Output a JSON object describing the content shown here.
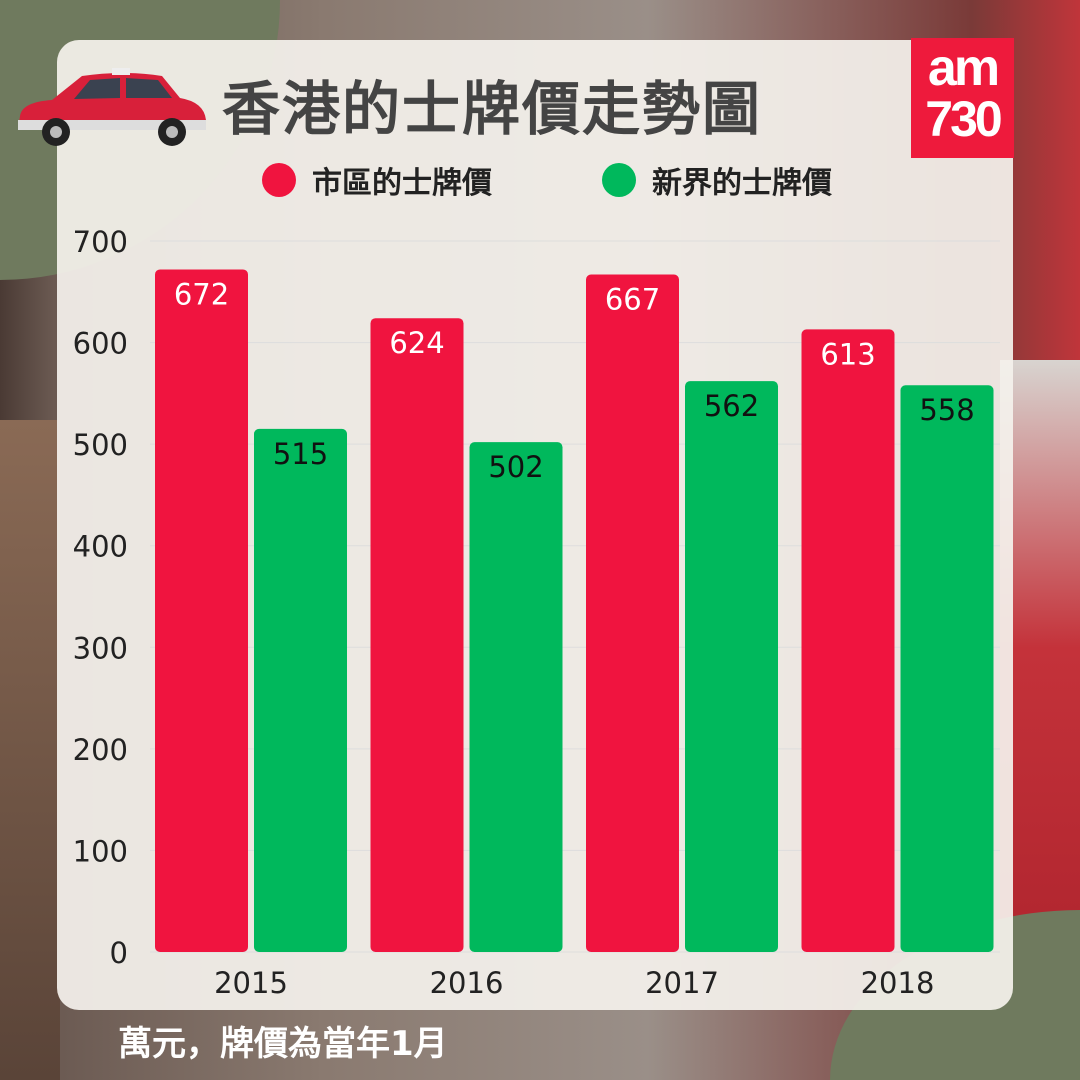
{
  "title": "香港的士牌價走勢圖",
  "logo": "am730",
  "footnote": "萬元，牌價為當年1月",
  "colors": {
    "urban": "#f0143f",
    "nt": "#00b85c"
  },
  "chart_data": {
    "type": "bar",
    "categories": [
      "2015",
      "2016",
      "2017",
      "2018"
    ],
    "series": [
      {
        "name": "市區的士牌價",
        "values": [
          672,
          624,
          667,
          613
        ]
      },
      {
        "name": "新界的士牌價",
        "values": [
          515,
          502,
          562,
          558
        ]
      }
    ],
    "ylim": [
      0,
      700
    ],
    "yticks": [
      0,
      100,
      200,
      300,
      400,
      500,
      600,
      700
    ],
    "grid": true,
    "legend": "top",
    "unit": "萬元"
  }
}
